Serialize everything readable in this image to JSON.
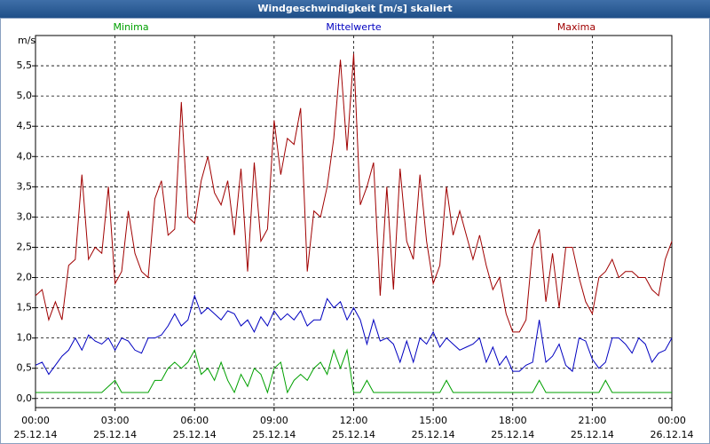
{
  "chart_data": {
    "type": "line",
    "title": "Windgeschwindigkeit [m/s] skaliert",
    "ylabel": "m/s",
    "legend": "top",
    "grid": true,
    "xlim": [
      0,
      24
    ],
    "xticks": [
      {
        "value": 0,
        "label": "00:00\n25.12.14"
      },
      {
        "value": 3,
        "label": "03:00\n25.12.14"
      },
      {
        "value": 6,
        "label": "06:00\n25.12.14"
      },
      {
        "value": 9,
        "label": "09:00\n25.12.14"
      },
      {
        "value": 12,
        "label": "12:00\n25.12.14"
      },
      {
        "value": 15,
        "label": "15:00\n25.12.14"
      },
      {
        "value": 18,
        "label": "18:00\n25.12.14"
      },
      {
        "value": 21,
        "label": "21:00\n25.12.14"
      },
      {
        "value": 24,
        "label": "00:00\n26.12.14"
      }
    ],
    "ylim": [
      -0.15,
      6.0
    ],
    "yticks": [
      {
        "value": 0,
        "label": "0,0"
      },
      {
        "value": 0.5,
        "label": "0,5"
      },
      {
        "value": 1,
        "label": "1,0"
      },
      {
        "value": 1.5,
        "label": "1,5"
      },
      {
        "value": 2,
        "label": "2,0"
      },
      {
        "value": 2.5,
        "label": "2,5"
      },
      {
        "value": 3,
        "label": "3,0"
      },
      {
        "value": 3.5,
        "label": "3,5"
      },
      {
        "value": 4,
        "label": "4,0"
      },
      {
        "value": 4.5,
        "label": "4,5"
      },
      {
        "value": 5,
        "label": "5,0"
      },
      {
        "value": 5.5,
        "label": "5,5"
      }
    ],
    "x": [
      0,
      0.25,
      0.5,
      0.75,
      1,
      1.25,
      1.5,
      1.75,
      2,
      2.25,
      2.5,
      2.75,
      3,
      3.25,
      3.5,
      3.75,
      4,
      4.25,
      4.5,
      4.75,
      5,
      5.25,
      5.5,
      5.75,
      6,
      6.25,
      6.5,
      6.75,
      7,
      7.25,
      7.5,
      7.75,
      8,
      8.25,
      8.5,
      8.75,
      9,
      9.25,
      9.5,
      9.75,
      10,
      10.25,
      10.5,
      10.75,
      11,
      11.25,
      11.5,
      11.75,
      12,
      12.25,
      12.5,
      12.75,
      13,
      13.25,
      13.5,
      13.75,
      14,
      14.25,
      14.5,
      14.75,
      15,
      15.25,
      15.5,
      15.75,
      16,
      16.25,
      16.5,
      16.75,
      17,
      17.25,
      17.5,
      17.75,
      18,
      18.25,
      18.5,
      18.75,
      19,
      19.25,
      19.5,
      19.75,
      20,
      20.25,
      20.5,
      20.75,
      21,
      21.25,
      21.5,
      21.75,
      22,
      22.25,
      22.5,
      22.75,
      23,
      23.25,
      23.5,
      23.75,
      24
    ],
    "series": [
      {
        "name": "Minima",
        "color": "#00a000",
        "values": [
          0.1,
          0.1,
          0.1,
          0.1,
          0.1,
          0.1,
          0.1,
          0.1,
          0.1,
          0.1,
          0.1,
          0.2,
          0.3,
          0.1,
          0.1,
          0.1,
          0.1,
          0.1,
          0.3,
          0.3,
          0.5,
          0.6,
          0.5,
          0.6,
          0.8,
          0.4,
          0.5,
          0.3,
          0.6,
          0.3,
          0.1,
          0.4,
          0.2,
          0.5,
          0.4,
          0.1,
          0.5,
          0.6,
          0.1,
          0.3,
          0.4,
          0.3,
          0.5,
          0.6,
          0.4,
          0.8,
          0.5,
          0.8,
          0.1,
          0.1,
          0.3,
          0.1,
          0.1,
          0.1,
          0.1,
          0.1,
          0.1,
          0.1,
          0.1,
          0.1,
          0.1,
          0.1,
          0.3,
          0.1,
          0.1,
          0.1,
          0.1,
          0.1,
          0.1,
          0.1,
          0.1,
          0.1,
          0.1,
          0.1,
          0.1,
          0.1,
          0.3,
          0.1,
          0.1,
          0.1,
          0.1,
          0.1,
          0.1,
          0.1,
          0.1,
          0.1,
          0.3,
          0.1,
          0.1,
          0.1,
          0.1,
          0.1,
          0.1,
          0.1,
          0.1,
          0.1,
          0.1
        ]
      },
      {
        "name": "Mittelwerte",
        "color": "#0000c0",
        "values": [
          0.55,
          0.6,
          0.4,
          0.55,
          0.7,
          0.8,
          1.0,
          0.8,
          1.05,
          0.95,
          0.9,
          1.0,
          0.8,
          1.0,
          0.95,
          0.8,
          0.75,
          1.0,
          1.0,
          1.05,
          1.2,
          1.4,
          1.2,
          1.3,
          1.7,
          1.4,
          1.5,
          1.4,
          1.3,
          1.45,
          1.4,
          1.2,
          1.3,
          1.1,
          1.35,
          1.2,
          1.45,
          1.3,
          1.4,
          1.3,
          1.45,
          1.2,
          1.3,
          1.3,
          1.65,
          1.5,
          1.6,
          1.3,
          1.5,
          1.3,
          0.9,
          1.3,
          0.95,
          1.0,
          0.9,
          0.6,
          0.95,
          0.6,
          1.0,
          0.9,
          1.1,
          0.85,
          1.0,
          0.9,
          0.8,
          0.85,
          0.9,
          1.0,
          0.6,
          0.85,
          0.55,
          0.7,
          0.45,
          0.45,
          0.55,
          0.6,
          1.3,
          0.6,
          0.7,
          0.9,
          0.55,
          0.45,
          1.0,
          0.95,
          0.65,
          0.5,
          0.6,
          1.0,
          1.0,
          0.9,
          0.75,
          1.0,
          0.9,
          0.6,
          0.75,
          0.8,
          1.0
        ]
      },
      {
        "name": "Maxima",
        "color": "#a00000",
        "values": [
          1.7,
          1.8,
          1.3,
          1.6,
          1.3,
          2.2,
          2.3,
          3.7,
          2.3,
          2.5,
          2.4,
          3.5,
          1.9,
          2.1,
          3.1,
          2.4,
          2.1,
          2.0,
          3.3,
          3.6,
          2.7,
          2.8,
          4.9,
          3.0,
          2.9,
          3.6,
          4.0,
          3.4,
          3.2,
          3.6,
          2.7,
          3.8,
          2.1,
          3.9,
          2.6,
          2.8,
          4.6,
          3.7,
          4.3,
          4.2,
          4.8,
          2.1,
          3.1,
          3.0,
          3.5,
          4.3,
          5.6,
          4.1,
          5.7,
          3.2,
          3.5,
          3.9,
          1.7,
          3.5,
          1.8,
          3.8,
          2.6,
          2.3,
          3.7,
          2.6,
          1.9,
          2.2,
          3.5,
          2.7,
          3.1,
          2.7,
          2.3,
          2.7,
          2.2,
          1.8,
          2.0,
          1.4,
          1.1,
          1.1,
          1.3,
          2.5,
          2.8,
          1.6,
          2.4,
          1.5,
          2.5,
          2.5,
          2.0,
          1.6,
          1.4,
          2.0,
          2.1,
          2.3,
          2.0,
          2.1,
          2.1,
          2.0,
          2.0,
          1.8,
          1.7,
          2.3,
          2.6
        ]
      }
    ]
  }
}
